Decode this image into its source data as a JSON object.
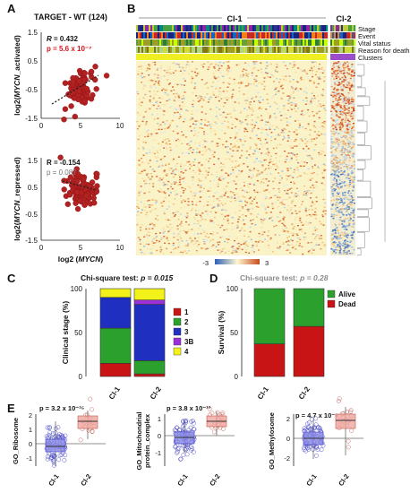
{
  "panels": {
    "A": {
      "letter": "A",
      "title": "TARGET - WT (124)",
      "top": {
        "stat_r": "R = 0.432",
        "stat_p": "p = 5.6 x 10⁻⁷",
        "ylabel_pre": "log2(",
        "ylabel_gene": "MYCN",
        "ylabel_post": "_activated)",
        "yticks": [
          "1.5",
          "0.5",
          "-0.5",
          "-1.5"
        ],
        "xticks": [
          "0",
          "5",
          "10"
        ]
      },
      "bottom": {
        "stat_r": "R = -0.154",
        "stat_p": "p = 0.087",
        "ylabel_pre": "log2(",
        "ylabel_gene": "MYCN",
        "ylabel_post": "_repressed)",
        "yticks": [
          "1.5",
          "0.5",
          "-0.5",
          "-1.5"
        ],
        "xticks": [
          "0",
          "5",
          "10"
        ],
        "xlabel_pre": "log2 (",
        "xlabel_gene": "MYCN",
        "xlabel_post": ")"
      }
    },
    "B": {
      "letter": "B",
      "cluster1": "Cl-1",
      "cluster2": "Cl-2",
      "track_labels": [
        "Stage",
        "Event",
        "Vital status",
        "Reason for death",
        "Clusters"
      ],
      "scale_min": "-3",
      "scale_max": "3"
    },
    "C": {
      "letter": "C",
      "test_label": "Chi-square test: ",
      "test_p": "p = 0.015",
      "ylabel": "Clinical stage (%)",
      "yticks": [
        "100",
        "50",
        "0"
      ],
      "groups": [
        "Cl-1",
        "Cl-2"
      ],
      "legend": [
        "1",
        "2",
        "3",
        "3B",
        "4"
      ],
      "colors": [
        "#c81414",
        "#2ca02c",
        "#1f2fbf",
        "#9b30d9",
        "#f2f21a"
      ]
    },
    "D": {
      "letter": "D",
      "test_label": "Chi-square test: ",
      "test_p": "p = 0.28",
      "ylabel": "Survival (%)",
      "yticks": [
        "100",
        "50",
        "0"
      ],
      "groups": [
        "Cl-1",
        "Cl-2"
      ],
      "legend": [
        "Alive",
        "Dead"
      ],
      "colors": [
        "#2ca02c",
        "#c81414"
      ]
    },
    "E": {
      "letter": "E",
      "plots": [
        {
          "p": "p = 3.2 x 10⁻¹⁵",
          "ylabel1": "GO_Ribosome",
          "ylabel2": "",
          "yticks": [
            "2",
            "1",
            "0",
            "-1"
          ],
          "groups": [
            "Cl-1",
            "Cl-2"
          ]
        },
        {
          "p": "p = 3.8 x 10⁻¹³",
          "ylabel1": "GO_Mitochondrial",
          "ylabel2": "protein_complex",
          "yticks": [
            "1",
            "0",
            "-1"
          ],
          "groups": [
            "Cl-1",
            "Cl-2"
          ]
        },
        {
          "p": "p = 4.7 x 10⁻⁶",
          "ylabel1": "GO_Methylosome",
          "ylabel2": "",
          "yticks": [
            "2",
            "0",
            "-2"
          ],
          "groups": [
            "Cl-1",
            "Cl-2"
          ]
        }
      ]
    }
  },
  "chart_data": [
    {
      "type": "bar",
      "panel": "C",
      "stacked": true,
      "categories": [
        "Cl-1",
        "Cl-2"
      ],
      "series": [
        {
          "name": "1",
          "values": [
            15,
            3
          ]
        },
        {
          "name": "2",
          "values": [
            40,
            15
          ]
        },
        {
          "name": "3",
          "values": [
            35,
            64
          ]
        },
        {
          "name": "3B",
          "values": [
            0,
            5
          ]
        },
        {
          "name": "4",
          "values": [
            10,
            13
          ]
        }
      ],
      "ylabel": "Clinical stage (%)",
      "ylim": [
        0,
        100
      ]
    },
    {
      "type": "bar",
      "panel": "D",
      "stacked": true,
      "categories": [
        "Cl-1",
        "Cl-2"
      ],
      "series": [
        {
          "name": "Dead",
          "values": [
            37,
            57
          ]
        },
        {
          "name": "Alive",
          "values": [
            63,
            43
          ]
        }
      ],
      "ylabel": "Survival (%)",
      "ylim": [
        0,
        100
      ]
    },
    {
      "type": "scatter",
      "panel": "A-top",
      "r": 0.432,
      "ylabel": "log2(MYCN_activated)",
      "xlim": [
        0,
        10
      ],
      "ylim": [
        -1.5,
        1.5
      ]
    },
    {
      "type": "scatter",
      "panel": "A-bottom",
      "r": -0.154,
      "ylabel": "log2(MYCN_repressed)",
      "xlabel": "log2 (MYCN)",
      "xlim": [
        0,
        10
      ],
      "ylim": [
        -1.5,
        1.5
      ]
    }
  ]
}
